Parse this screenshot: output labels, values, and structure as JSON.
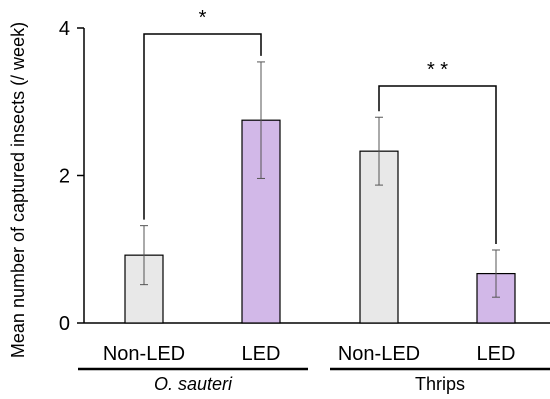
{
  "chart_data": {
    "type": "bar",
    "title": "",
    "ylabel": "Mean number of captured insects (/ week)",
    "xlabel": "",
    "ylim": [
      0,
      4
    ],
    "yticks": [
      "0",
      "2",
      "4"
    ],
    "grid": false,
    "legend": "none",
    "groups": [
      {
        "name": "O. sauteri",
        "significance": "*",
        "bars": [
          {
            "category": "Non-LED",
            "value": 0.92,
            "error": 0.4,
            "color": "#e8e8e8"
          },
          {
            "category": "LED",
            "value": 2.75,
            "error": 0.79,
            "color": "#d2b8e8"
          }
        ]
      },
      {
        "name": "Thrips",
        "significance": "* *",
        "bars": [
          {
            "category": "Non-LED",
            "value": 2.33,
            "error": 0.46,
            "color": "#e8e8e8"
          },
          {
            "category": "LED",
            "value": 0.67,
            "error": 0.32,
            "color": "#d2b8e8"
          }
        ]
      }
    ]
  }
}
